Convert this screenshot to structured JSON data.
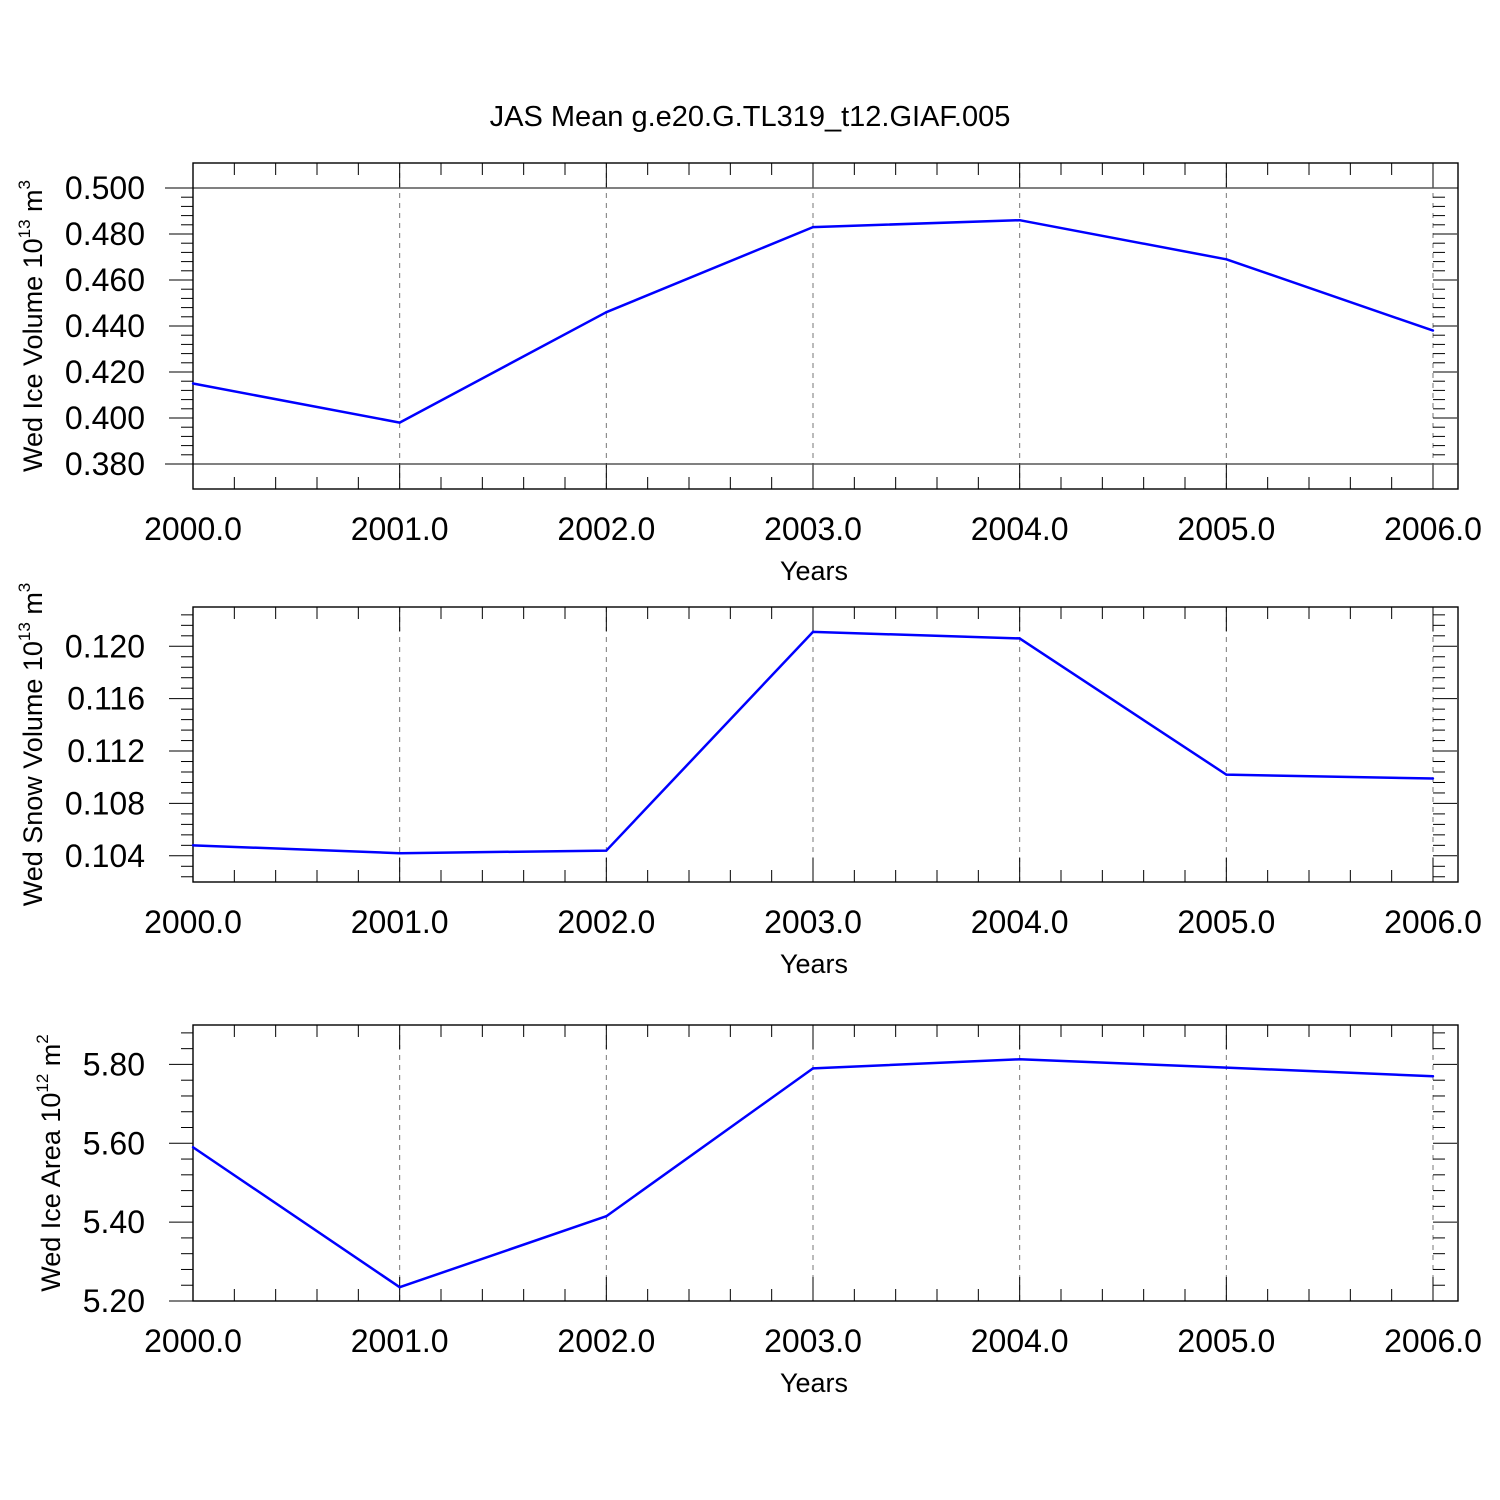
{
  "title": "JAS Mean g.e20.G.TL319_t12.GIAF.005",
  "colors": {
    "line": "#0000ff",
    "axis": "#000000",
    "grid": "#777777"
  },
  "chart_data": [
    {
      "type": "line",
      "xlabel": "Years",
      "ylabel": "Wed Ice Volume 10",
      "ylabel_exp": "13",
      "ylabel_unit": " m",
      "ylabel_unit_exp": "3",
      "x": [
        2000,
        2001,
        2002,
        2003,
        2004,
        2005,
        2006
      ],
      "values": [
        0.415,
        0.398,
        0.446,
        0.483,
        0.486,
        0.469,
        0.438
      ],
      "xlim": [
        2000,
        2006
      ],
      "ylim": [
        0.38,
        0.5
      ],
      "xticks": [
        "2000.0",
        "2001.0",
        "2002.0",
        "2003.0",
        "2004.0",
        "2005.0",
        "2006.0"
      ],
      "yticks": [
        0.38,
        0.4,
        0.42,
        0.44,
        0.46,
        0.48,
        0.5
      ],
      "ytick_labels": [
        "0.380",
        "0.400",
        "0.420",
        "0.440",
        "0.460",
        "0.480",
        "0.500"
      ],
      "grid": "vertical dashed at major x ticks"
    },
    {
      "type": "line",
      "xlabel": "Years",
      "ylabel": "Wed Snow Volume 10",
      "ylabel_exp": "13",
      "ylabel_unit": " m",
      "ylabel_unit_exp": "3",
      "x": [
        2000,
        2001,
        2002,
        2003,
        2004,
        2005,
        2006
      ],
      "values": [
        0.1048,
        0.1042,
        0.1044,
        0.1211,
        0.1206,
        0.1102,
        0.1099
      ],
      "xlim": [
        2000,
        2006
      ],
      "ylim": [
        0.102,
        0.123
      ],
      "xticks": [
        "2000.0",
        "2001.0",
        "2002.0",
        "2003.0",
        "2004.0",
        "2005.0",
        "2006.0"
      ],
      "yticks": [
        0.104,
        0.108,
        0.112,
        0.116,
        0.12
      ],
      "ytick_labels": [
        "0.104",
        "0.108",
        "0.112",
        "0.116",
        "0.120"
      ],
      "grid": "vertical dashed at major x ticks"
    },
    {
      "type": "line",
      "xlabel": "Years",
      "ylabel": "Wed Ice Area 10",
      "ylabel_exp": "12",
      "ylabel_unit": " m",
      "ylabel_unit_exp": "2",
      "x": [
        2000,
        2001,
        2002,
        2003,
        2004,
        2005,
        2006
      ],
      "values": [
        5.59,
        5.235,
        5.415,
        5.79,
        5.813,
        5.792,
        5.77
      ],
      "xlim": [
        2000,
        2006
      ],
      "ylim": [
        5.2,
        5.9
      ],
      "xticks": [
        "2000.0",
        "2001.0",
        "2002.0",
        "2003.0",
        "2004.0",
        "2005.0",
        "2006.0"
      ],
      "yticks": [
        5.2,
        5.4,
        5.6,
        5.8
      ],
      "ytick_labels": [
        "5.20",
        "5.40",
        "5.60",
        "5.80"
      ],
      "grid": "vertical dashed at major x ticks"
    }
  ]
}
